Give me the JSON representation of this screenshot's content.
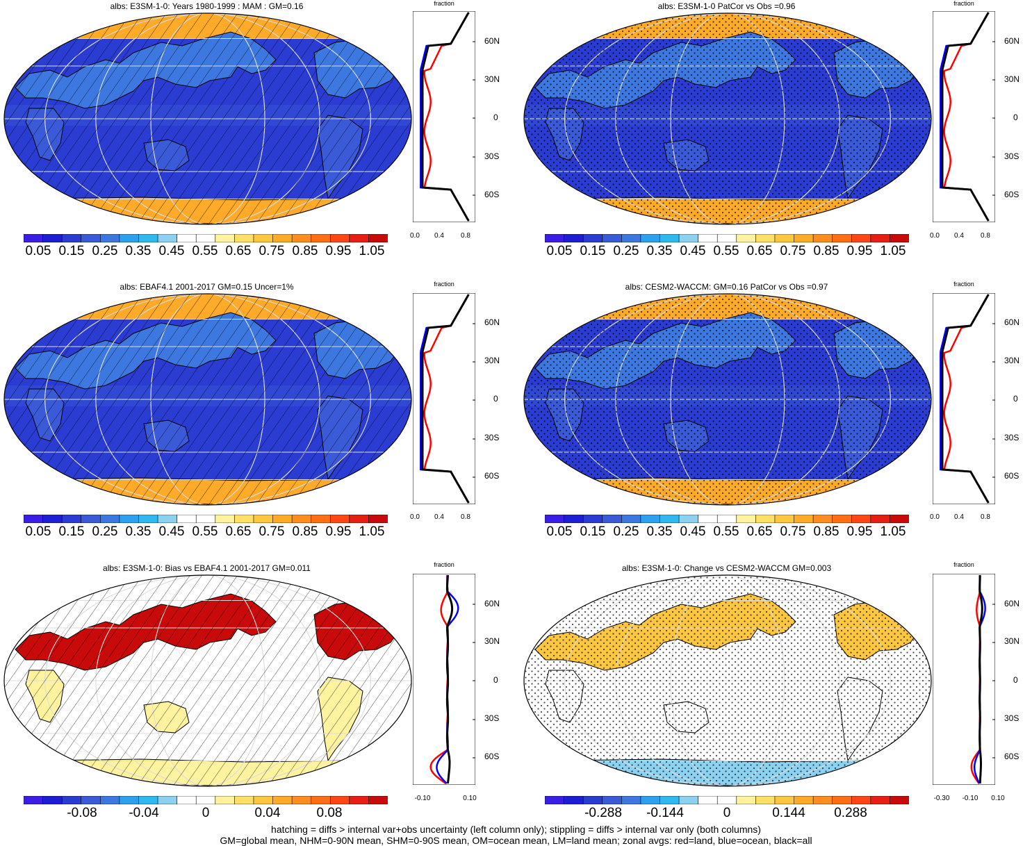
{
  "panels": [
    {
      "title": "albs: E3SM-1-0: Years 1980-1999 : MAM : GM=0.16",
      "scheme": "abs",
      "overlay": "hatch"
    },
    {
      "title": "albs: E3SM-1-0 PatCor vs Obs =0.96",
      "scheme": "abs",
      "overlay": "stipple"
    },
    {
      "title": "albs: EBAF4.1 2001-2017 GM=0.15 Uncer=1%",
      "scheme": "abs",
      "overlay": "hatch"
    },
    {
      "title": "albs: CESM2-WACCM: GM=0.16 PatCor vs Obs =0.97",
      "scheme": "abs",
      "overlay": "stipple"
    },
    {
      "title": "albs: E3SM-1-0: Bias vs EBAF4.1 2001-2017 GM=0.011",
      "scheme": "diff",
      "overlay": "hatch"
    },
    {
      "title": "albs: E3SM-1-0: Change vs CESM2-WACCM GM=0.003",
      "scheme": "diff",
      "overlay": "stipple"
    }
  ],
  "zonal_axis": {
    "title": "fraction",
    "lat_labels": [
      "60N",
      "30N",
      "0",
      "30S",
      "60S"
    ],
    "x_ticks_abs": [
      "0.0",
      "0.4",
      "0.8"
    ],
    "x_ticks_left_bias": [
      "-0.10",
      "0.10"
    ],
    "x_ticks_right_change": [
      "-0.30",
      "-0.10",
      "0.10"
    ]
  },
  "colorbars": {
    "abs_labels": [
      "0.05",
      "0.15",
      "0.25",
      "0.35",
      "0.45",
      "0.55",
      "0.65",
      "0.75",
      "0.85",
      "0.95",
      "1.05"
    ],
    "bias_labels": [
      "-0.08",
      "-0.04",
      "0",
      "0.04",
      "0.08"
    ],
    "change_labels": [
      "-0.288",
      "-0.144",
      "0",
      "0.144",
      "0.288"
    ],
    "colors": [
      "#3a1ee6",
      "#1e1ed2",
      "#2a3cd2",
      "#3a5ad8",
      "#3c78e0",
      "#2ea0f0",
      "#30b8f0",
      "#8cd2f0",
      "#ffffff",
      "#ffffff",
      "#fff3a0",
      "#ffe066",
      "#ffc640",
      "#ffaa28",
      "#ff8c1e",
      "#ff6e14",
      "#ff4614",
      "#e61e14",
      "#c80a0a"
    ]
  },
  "zonal_legend": {
    "land": "#ff0000",
    "ocean": "#0000ff",
    "all": "#000000"
  },
  "footnotes": [
    "hatching = diffs > internal var+obs uncertainty (left column only); stippling = diffs > internal var only (both columns)",
    "GM=global mean, NHM=0-90N mean, SHM=0-90S mean, OM=ocean mean, LM=land mean; zonal avgs: red=land, blue=ocean, black=all"
  ]
}
